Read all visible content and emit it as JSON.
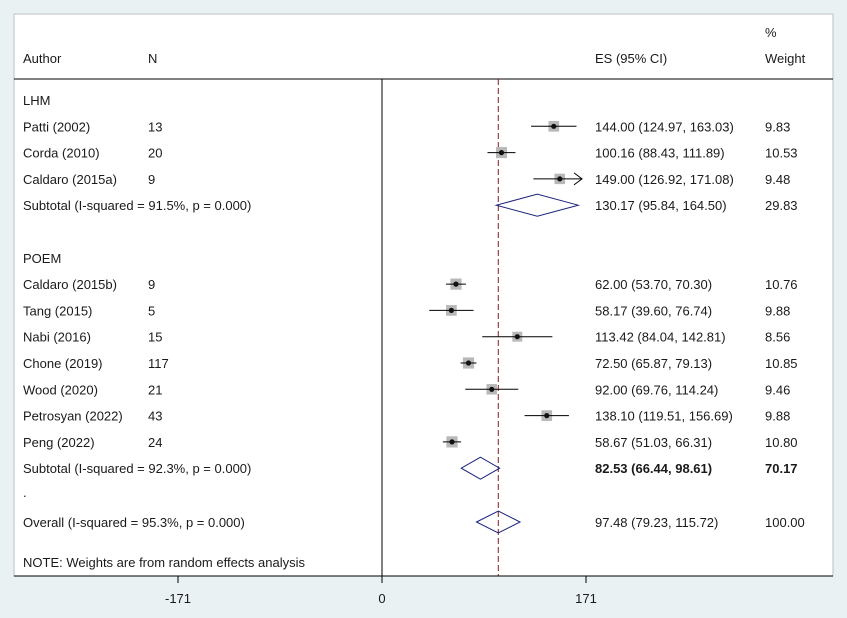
{
  "header": {
    "author_label": "Author",
    "n_label": "N",
    "es_label": "ES (95% CI)",
    "weight_label_line1": "%",
    "weight_label_line2": "Weight"
  },
  "groups": [
    {
      "name": "LHM",
      "studies": [
        {
          "author": "Patti (2002)",
          "n": "13",
          "es": 144.0,
          "lo": 124.97,
          "hi": 163.03,
          "ci_text": "144.00 (124.97, 163.03)",
          "weight": "9.83",
          "weight_value": 9.83
        },
        {
          "author": "Corda (2010)",
          "n": "20",
          "es": 100.16,
          "lo": 88.43,
          "hi": 111.89,
          "ci_text": "100.16 (88.43, 111.89)",
          "weight": "10.53",
          "weight_value": 10.53
        },
        {
          "author": "Caldaro (2015a)",
          "n": "9",
          "es": 149.0,
          "lo": 126.92,
          "hi": 171.08,
          "ci_text": "149.00 (126.92, 171.08)",
          "weight": "9.48",
          "weight_value": 9.48,
          "arrow": true
        }
      ],
      "subtotal": {
        "label": "Subtotal  (I-squared = 91.5%, p = 0.000)",
        "es": 130.17,
        "lo": 95.84,
        "hi": 164.5,
        "ci_text": "130.17 (95.84, 164.50)",
        "weight": "29.83",
        "bold": false
      }
    },
    {
      "name": "POEM",
      "studies": [
        {
          "author": "Caldaro (2015b)",
          "n": "9",
          "es": 62.0,
          "lo": 53.7,
          "hi": 70.3,
          "ci_text": "62.00 (53.70, 70.30)",
          "weight": "10.76",
          "weight_value": 10.76
        },
        {
          "author": "Tang (2015)",
          "n": "5",
          "es": 58.17,
          "lo": 39.6,
          "hi": 76.74,
          "ci_text": "58.17 (39.60, 76.74)",
          "weight": "9.88",
          "weight_value": 9.88
        },
        {
          "author": "Nabi (2016)",
          "n": "15",
          "es": 113.42,
          "lo": 84.04,
          "hi": 142.81,
          "ci_text": "113.42 (84.04, 142.81)",
          "weight": "8.56",
          "weight_value": 8.56
        },
        {
          "author": "Chone (2019)",
          "n": "117",
          "es": 72.5,
          "lo": 65.87,
          "hi": 79.13,
          "ci_text": "72.50 (65.87, 79.13)",
          "weight": "10.85",
          "weight_value": 10.85
        },
        {
          "author": "Wood (2020)",
          "n": "21",
          "es": 92.0,
          "lo": 69.76,
          "hi": 114.24,
          "ci_text": "92.00 (69.76, 114.24)",
          "weight": "9.46",
          "weight_value": 9.46
        },
        {
          "author": "Petrosyan (2022)",
          "n": "43",
          "es": 138.1,
          "lo": 119.51,
          "hi": 156.69,
          "ci_text": "138.10 (119.51, 156.69)",
          "weight": "9.88",
          "weight_value": 9.88
        },
        {
          "author": "Peng (2022)",
          "n": "24",
          "es": 58.67,
          "lo": 51.03,
          "hi": 66.31,
          "ci_text": "58.67 (51.03, 66.31)",
          "weight": "10.80",
          "weight_value": 10.8
        }
      ],
      "subtotal": {
        "label": "Subtotal  (I-squared = 92.3%, p = 0.000)",
        "es": 82.53,
        "lo": 66.44,
        "hi": 98.61,
        "ci_text": "82.53 (66.44, 98.61)",
        "weight": "70.17",
        "bold": true
      }
    }
  ],
  "separator": ".",
  "overall": {
    "label": "Overall  (I-squared = 95.3%, p = 0.000)",
    "es": 97.48,
    "lo": 79.23,
    "hi": 115.72,
    "ci_text": "97.48 (79.23, 115.72)",
    "weight": "100.00"
  },
  "note": "NOTE: Weights are from random effects analysis",
  "axis": {
    "ticks": [
      -171,
      0,
      171
    ],
    "tick_labels": [
      "-171",
      "0",
      "171"
    ],
    "range": [
      -171,
      171
    ],
    "null_line": 0,
    "reference_line": 97.48
  },
  "colors": {
    "background": "#eaf1f3",
    "panel": "#ffffff",
    "diamond": "#1a237e",
    "reference_line": "#8b1a1a",
    "ci_line": "#000000",
    "weight_box": "#b8b8b8"
  },
  "chart_data": {
    "type": "forest",
    "title": "",
    "xlabel": "",
    "xlim": [
      -171,
      171
    ],
    "x_ticks": [
      -171,
      0,
      171
    ],
    "null_value": 0,
    "pooled_reference": 97.48,
    "series": [
      {
        "name": "LHM",
        "values": [
          144.0,
          100.16,
          149.0
        ],
        "subtotal": 130.17
      },
      {
        "name": "POEM",
        "values": [
          62.0,
          58.17,
          113.42,
          72.5,
          92.0,
          138.1,
          58.67
        ],
        "subtotal": 82.53
      }
    ],
    "overall": 97.48
  }
}
